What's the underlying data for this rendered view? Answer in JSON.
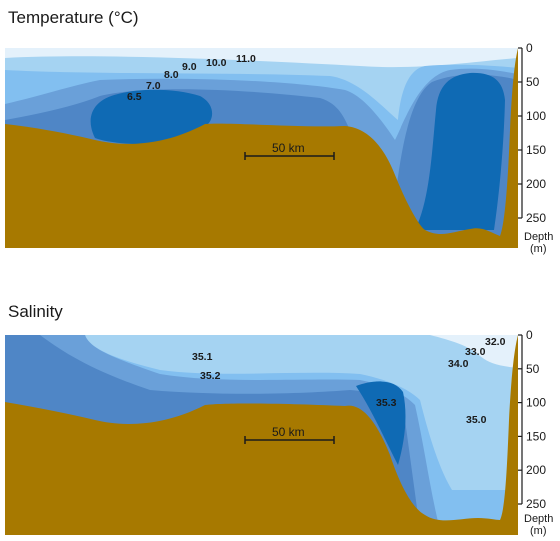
{
  "colors": {
    "seafloor": "#a77900",
    "band_lightest": "#e4f1fb",
    "band_light": "#a5d3f2",
    "band_mid_light": "#82bff0",
    "band_mid": "#6aa0d9",
    "band_mid_dark": "#4f86c6",
    "band_dark": "#0f6ab4"
  },
  "chart_data": [
    {
      "type": "contour-section",
      "title": "Temperature (°C)",
      "ylabel": "Depth (m)",
      "y_ticks": [
        0,
        50,
        100,
        150,
        200,
        250
      ],
      "ylim": [
        0,
        250
      ],
      "scale_bar": "50 km",
      "contours": [
        "6.5",
        "7.0",
        "8.0",
        "9.0",
        "10.0",
        "11.0"
      ]
    },
    {
      "type": "contour-section",
      "title": "Salinity",
      "ylabel": "Depth (m)",
      "y_ticks": [
        0,
        50,
        100,
        150,
        200,
        250
      ],
      "ylim": [
        0,
        250
      ],
      "scale_bar": "50 km",
      "contours": [
        "35.1",
        "35.2",
        "35.3",
        "35.0",
        "34.0",
        "33.0",
        "32.0"
      ]
    }
  ],
  "axis_unit": {
    "line1": "Depth",
    "line2": "(m)"
  }
}
